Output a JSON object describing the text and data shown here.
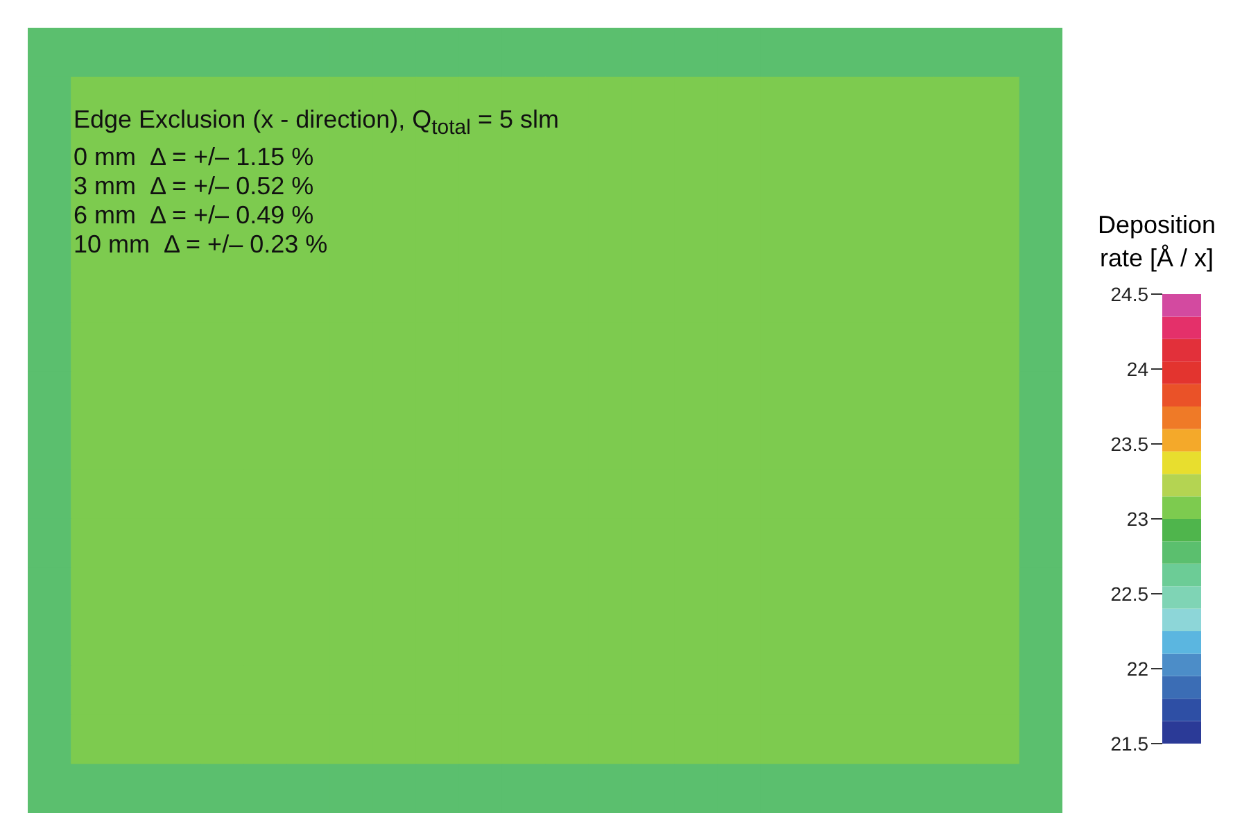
{
  "chart_data": {
    "type": "heatmap",
    "title": "Edge Exclusion (x - direction), Q$_{total}$ = 5 slm",
    "annotations": [
      "0 mm  Δ = +/– 1.15 %",
      "3 mm  Δ = +/– 0.52 %",
      "6 mm  Δ = +/– 0.49 %",
      "10 mm  Δ = +/– 0.23 %"
    ],
    "clabel": "Deposition rate [Å / x]",
    "clim": [
      21.5,
      24.5
    ],
    "cticks": [
      21.5,
      22,
      22.5,
      23,
      23.5,
      24,
      24.5
    ],
    "categories": [
      null,
      null,
      null,
      null,
      null,
      null,
      null,
      null,
      null,
      null,
      null,
      null,
      null,
      null,
      null,
      null,
      null,
      null,
      null,
      null,
      null,
      null,
      null,
      null
    ],
    "y_categories": [
      null,
      null,
      null,
      null,
      null,
      null,
      null,
      null,
      null,
      null,
      null,
      null,
      null,
      null,
      null,
      null
    ],
    "cells": [
      [
        22.8,
        22.8,
        22.8,
        22.8,
        22.8,
        22.8,
        22.8,
        22.8,
        22.8,
        22.8,
        22.8,
        22.8,
        22.8,
        22.8,
        22.8,
        22.8,
        22.8,
        22.8,
        22.8,
        22.8,
        22.8,
        22.8,
        22.8,
        22.8
      ],
      [
        22.8,
        23.1,
        23.1,
        23.1,
        23.1,
        23.1,
        23.1,
        23.1,
        23.1,
        23.1,
        23.1,
        23.1,
        23.1,
        23.1,
        23.1,
        23.1,
        23.1,
        23.1,
        23.1,
        23.1,
        23.1,
        23.1,
        23.1,
        22.8
      ],
      [
        22.8,
        23.1,
        23.1,
        23.1,
        23.1,
        23.1,
        23.1,
        23.1,
        23.1,
        23.1,
        23.1,
        23.1,
        23.1,
        23.1,
        23.1,
        23.1,
        23.1,
        23.1,
        23.1,
        23.1,
        23.1,
        23.1,
        23.1,
        22.8
      ],
      [
        22.8,
        23.1,
        23.1,
        23.1,
        23.1,
        23.1,
        23.1,
        23.1,
        23.1,
        23.1,
        23.1,
        23.1,
        23.1,
        23.1,
        23.1,
        23.1,
        23.1,
        23.1,
        23.1,
        23.1,
        23.1,
        23.1,
        23.1,
        22.8
      ],
      [
        22.8,
        23.1,
        23.1,
        23.1,
        23.1,
        23.1,
        23.1,
        23.1,
        23.1,
        23.1,
        23.1,
        23.1,
        23.1,
        23.1,
        23.1,
        23.1,
        23.1,
        23.1,
        23.1,
        23.1,
        23.1,
        23.1,
        23.1,
        22.8
      ],
      [
        22.8,
        23.1,
        23.1,
        23.1,
        23.1,
        23.1,
        23.1,
        23.1,
        23.1,
        23.1,
        23.1,
        23.1,
        23.1,
        23.1,
        23.1,
        23.1,
        23.1,
        23.1,
        23.1,
        23.1,
        23.1,
        23.1,
        23.1,
        22.8
      ],
      [
        22.8,
        23.1,
        23.1,
        23.1,
        23.1,
        23.1,
        23.1,
        23.1,
        23.1,
        23.1,
        23.1,
        23.1,
        23.1,
        23.1,
        23.1,
        23.1,
        23.1,
        23.1,
        23.1,
        23.1,
        23.1,
        23.1,
        23.1,
        22.8
      ],
      [
        22.8,
        23.1,
        23.1,
        23.1,
        23.1,
        23.1,
        23.1,
        23.1,
        23.1,
        23.1,
        23.1,
        23.1,
        23.1,
        23.1,
        23.1,
        23.1,
        23.1,
        23.1,
        23.1,
        23.1,
        23.1,
        23.1,
        23.1,
        22.8
      ],
      [
        22.8,
        23.1,
        23.1,
        23.1,
        23.1,
        23.1,
        23.1,
        23.1,
        23.1,
        23.1,
        23.1,
        23.1,
        23.1,
        23.1,
        23.1,
        23.1,
        23.1,
        23.1,
        23.1,
        23.1,
        23.1,
        23.1,
        23.1,
        22.8
      ],
      [
        22.8,
        23.1,
        23.1,
        23.1,
        23.1,
        23.1,
        23.1,
        23.1,
        23.1,
        23.1,
        23.1,
        23.1,
        23.1,
        23.1,
        23.1,
        23.1,
        23.1,
        23.1,
        23.1,
        23.1,
        23.1,
        23.1,
        23.1,
        22.8
      ],
      [
        22.8,
        23.1,
        23.1,
        23.1,
        23.1,
        23.1,
        23.1,
        23.1,
        23.1,
        23.1,
        23.1,
        23.1,
        23.1,
        23.1,
        23.1,
        23.1,
        23.1,
        23.1,
        23.1,
        23.1,
        23.1,
        23.1,
        23.1,
        22.8
      ],
      [
        22.8,
        23.1,
        23.1,
        23.1,
        23.1,
        23.1,
        23.1,
        23.1,
        23.1,
        23.1,
        23.1,
        23.1,
        23.1,
        23.1,
        23.1,
        23.1,
        23.1,
        23.1,
        23.1,
        23.1,
        23.1,
        23.1,
        23.1,
        22.8
      ],
      [
        22.8,
        23.1,
        23.1,
        23.1,
        23.1,
        23.1,
        23.1,
        23.1,
        23.1,
        23.1,
        23.1,
        23.1,
        23.1,
        23.1,
        23.1,
        23.1,
        23.1,
        23.1,
        23.1,
        23.1,
        23.1,
        23.1,
        23.1,
        22.8
      ],
      [
        22.8,
        23.1,
        23.1,
        23.1,
        23.1,
        23.1,
        23.1,
        23.1,
        23.1,
        23.1,
        23.1,
        23.1,
        23.1,
        23.1,
        23.1,
        23.1,
        23.1,
        23.1,
        23.1,
        23.1,
        23.1,
        23.1,
        23.1,
        22.8
      ],
      [
        22.8,
        23.1,
        23.1,
        23.1,
        23.1,
        23.1,
        23.1,
        23.1,
        23.1,
        23.1,
        23.1,
        23.1,
        23.1,
        23.1,
        23.1,
        23.1,
        23.1,
        23.1,
        23.1,
        23.1,
        23.1,
        23.1,
        23.1,
        22.8
      ],
      [
        22.8,
        22.8,
        22.8,
        22.8,
        22.8,
        22.8,
        22.8,
        22.8,
        22.8,
        22.8,
        22.8,
        22.8,
        22.8,
        22.8,
        22.8,
        22.8,
        22.8,
        22.8,
        22.8,
        22.8,
        22.8,
        22.8,
        22.8,
        22.8
      ]
    ]
  }
}
